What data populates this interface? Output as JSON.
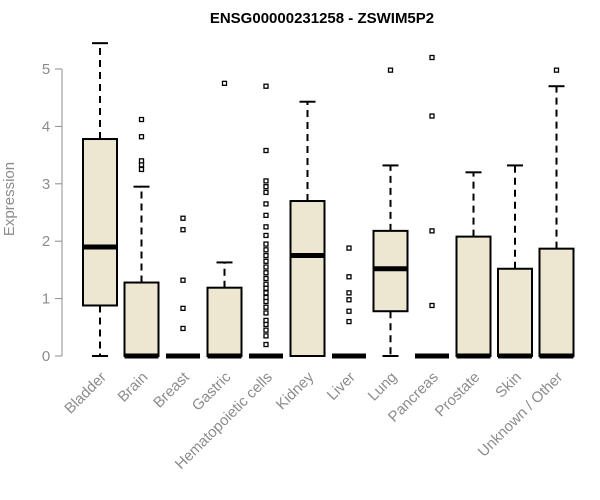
{
  "chart_data": {
    "type": "box",
    "title": "ENSG00000231258 - ZSWIM5P2",
    "xlabel": "",
    "ylabel": "Expression",
    "ylim": [
      0,
      5.5
    ],
    "yticks": [
      0,
      1,
      2,
      3,
      4,
      5
    ],
    "grid": false,
    "colors": {
      "box_fill": "#ede7d1",
      "stroke": "#000000",
      "axis": "#8c8c8c",
      "tick_text": "#8c8c8c"
    },
    "categories": [
      "Bladder",
      "Brain",
      "Breast",
      "Gastric",
      "Hematopoietic cells",
      "Kidney",
      "Liver",
      "Lung",
      "Pancreas",
      "Prostate",
      "Skin",
      "Unknown / Other"
    ],
    "boxes": [
      {
        "category": "Bladder",
        "whisker_low": 0,
        "q1": 0.88,
        "median": 1.9,
        "q3": 3.78,
        "whisker_high": 5.45,
        "outliers": []
      },
      {
        "category": "Brain",
        "whisker_low": 0,
        "q1": 0,
        "median": 0,
        "q3": 1.28,
        "whisker_high": 2.95,
        "outliers": [
          3.25,
          3.33,
          3.4,
          3.82,
          4.12
        ]
      },
      {
        "category": "Breast",
        "whisker_low": 0,
        "q1": 0,
        "median": 0,
        "q3": 0,
        "whisker_high": 0,
        "outliers": [
          0.48,
          0.83,
          1.32,
          2.2,
          2.4
        ]
      },
      {
        "category": "Gastric",
        "whisker_low": 0,
        "q1": 0,
        "median": 0,
        "q3": 1.19,
        "whisker_high": 1.63,
        "outliers": [
          4.75
        ]
      },
      {
        "category": "Hematopoietic cells",
        "whisker_low": 0,
        "q1": 0,
        "median": 0,
        "q3": 0,
        "whisker_high": 0,
        "outliers": [
          0.2,
          0.35,
          0.45,
          0.55,
          0.62,
          0.75,
          0.85,
          0.95,
          1.02,
          1.1,
          1.18,
          1.25,
          1.35,
          1.45,
          1.55,
          1.65,
          1.75,
          1.85,
          1.95,
          2.1,
          2.25,
          2.45,
          2.65,
          2.85,
          2.95,
          3.05,
          3.58,
          4.7
        ]
      },
      {
        "category": "Kidney",
        "whisker_low": 0,
        "q1": 0,
        "median": 1.75,
        "q3": 2.7,
        "whisker_high": 4.43,
        "outliers": []
      },
      {
        "category": "Liver",
        "whisker_low": 0,
        "q1": 0,
        "median": 0,
        "q3": 0,
        "whisker_high": 0,
        "outliers": [
          0.6,
          0.78,
          0.98,
          1.1,
          1.38,
          1.88
        ]
      },
      {
        "category": "Lung",
        "whisker_low": 0,
        "q1": 0.78,
        "median": 1.52,
        "q3": 2.18,
        "whisker_high": 3.32,
        "outliers": [
          4.98
        ]
      },
      {
        "category": "Pancreas",
        "whisker_low": 0,
        "q1": 0,
        "median": 0,
        "q3": 0,
        "whisker_high": 0,
        "outliers": [
          0.88,
          2.18,
          4.18,
          5.2
        ]
      },
      {
        "category": "Prostate",
        "whisker_low": 0,
        "q1": 0,
        "median": 0,
        "q3": 2.08,
        "whisker_high": 3.2,
        "outliers": []
      },
      {
        "category": "Skin",
        "whisker_low": 0,
        "q1": 0,
        "median": 0,
        "q3": 1.52,
        "whisker_high": 3.32,
        "outliers": []
      },
      {
        "category": "Unknown / Other",
        "whisker_low": 0,
        "q1": 0,
        "median": 0,
        "q3": 1.87,
        "whisker_high": 4.7,
        "outliers": [
          4.98
        ]
      }
    ]
  }
}
